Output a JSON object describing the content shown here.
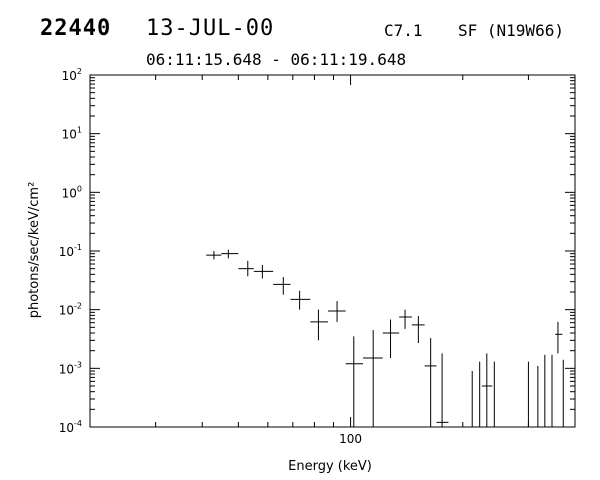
{
  "header": {
    "event_id": "22440",
    "date": "13-JUL-00",
    "goes_class": "C7.1",
    "location": "SF (N19W66)",
    "time_range": "06:11:15.648 - 06:11:19.648"
  },
  "chart_data": {
    "type": "scatter",
    "title": "",
    "xlabel": "Energy (keV)",
    "ylabel": "photons/sec/keV/cm²",
    "x_scale": "log",
    "y_scale": "log",
    "xlim": [
      20,
      400
    ],
    "ylim": [
      0.0001,
      100
    ],
    "x_tick_labels": [
      "100"
    ],
    "y_tick_labels": [
      {
        "base": "10",
        "exp": "-4"
      },
      {
        "base": "10",
        "exp": "-3"
      },
      {
        "base": "10",
        "exp": "-2"
      },
      {
        "base": "10",
        "exp": "-1"
      },
      {
        "base": "10",
        "exp": "0"
      },
      {
        "base": "10",
        "exp": "1"
      },
      {
        "base": "10",
        "exp": "2"
      }
    ],
    "grid": false,
    "series": [
      {
        "points": [
          {
            "x": 43,
            "x_lo": 41,
            "x_hi": 45,
            "y": 0.085,
            "y_lo": 0.072,
            "y_hi": 0.1
          },
          {
            "x": 47,
            "x_lo": 45,
            "x_hi": 50,
            "y": 0.09,
            "y_lo": 0.075,
            "y_hi": 0.105
          },
          {
            "x": 53,
            "x_lo": 50,
            "x_hi": 55,
            "y": 0.05,
            "y_lo": 0.037,
            "y_hi": 0.068
          },
          {
            "x": 58,
            "x_lo": 55,
            "x_hi": 62,
            "y": 0.045,
            "y_lo": 0.034,
            "y_hi": 0.058
          },
          {
            "x": 66,
            "x_lo": 62,
            "x_hi": 69,
            "y": 0.027,
            "y_lo": 0.018,
            "y_hi": 0.036
          },
          {
            "x": 73,
            "x_lo": 69,
            "x_hi": 78,
            "y": 0.015,
            "y_lo": 0.01,
            "y_hi": 0.021
          },
          {
            "x": 82,
            "x_lo": 78,
            "x_hi": 87,
            "y": 0.0062,
            "y_lo": 0.003,
            "y_hi": 0.01
          },
          {
            "x": 92,
            "x_lo": 87,
            "x_hi": 97,
            "y": 0.0095,
            "y_lo": 0.0062,
            "y_hi": 0.014
          },
          {
            "x": 102,
            "x_lo": 97,
            "x_hi": 108,
            "y": 0.0012,
            "y_lo": 0.0001,
            "y_hi": 0.0035
          },
          {
            "x": 115,
            "x_lo": 108,
            "x_hi": 122,
            "y": 0.0015,
            "y_lo": 0.0001,
            "y_hi": 0.0045
          },
          {
            "x": 128,
            "x_lo": 122,
            "x_hi": 135,
            "y": 0.004,
            "y_lo": 0.0015,
            "y_hi": 0.0068
          },
          {
            "x": 140,
            "x_lo": 135,
            "x_hi": 146,
            "y": 0.0075,
            "y_lo": 0.0047,
            "y_hi": 0.01
          },
          {
            "x": 152,
            "x_lo": 146,
            "x_hi": 158,
            "y": 0.0055,
            "y_lo": 0.0027,
            "y_hi": 0.0078
          },
          {
            "x": 164,
            "x_lo": 158,
            "x_hi": 170,
            "y": 0.0011,
            "y_lo": 0.0001,
            "y_hi": 0.0033
          },
          {
            "x": 176,
            "x_lo": 170,
            "x_hi": 183,
            "y": 0.00012,
            "y_lo": 0.0001,
            "y_hi": 0.0018
          },
          {
            "x": 212,
            "x_lo": 212,
            "x_hi": 212,
            "y": null,
            "y_lo": 0.0001,
            "y_hi": 0.0009
          },
          {
            "x": 222,
            "x_lo": 222,
            "x_hi": 222,
            "y": null,
            "y_lo": 0.0001,
            "y_hi": 0.0013
          },
          {
            "x": 232,
            "x_lo": 225,
            "x_hi": 240,
            "y": 0.0005,
            "y_lo": 0.0001,
            "y_hi": 0.0018
          },
          {
            "x": 243,
            "x_lo": 243,
            "x_hi": 243,
            "y": null,
            "y_lo": 0.0001,
            "y_hi": 0.0013
          },
          {
            "x": 300,
            "x_lo": 300,
            "x_hi": 300,
            "y": null,
            "y_lo": 0.0001,
            "y_hi": 0.0013
          },
          {
            "x": 318,
            "x_lo": 318,
            "x_hi": 318,
            "y": null,
            "y_lo": 0.0001,
            "y_hi": 0.0011
          },
          {
            "x": 332,
            "x_lo": 332,
            "x_hi": 332,
            "y": null,
            "y_lo": 0.0001,
            "y_hi": 0.0017
          },
          {
            "x": 347,
            "x_lo": 347,
            "x_hi": 347,
            "y": null,
            "y_lo": 0.0001,
            "y_hi": 0.0017
          },
          {
            "x": 360,
            "x_lo": 354,
            "x_hi": 370,
            "y": 0.0038,
            "y_lo": 0.0018,
            "y_hi": 0.0062
          },
          {
            "x": 372,
            "x_lo": 372,
            "x_hi": 372,
            "y": null,
            "y_lo": 0.0001,
            "y_hi": 0.0014
          }
        ]
      }
    ]
  }
}
